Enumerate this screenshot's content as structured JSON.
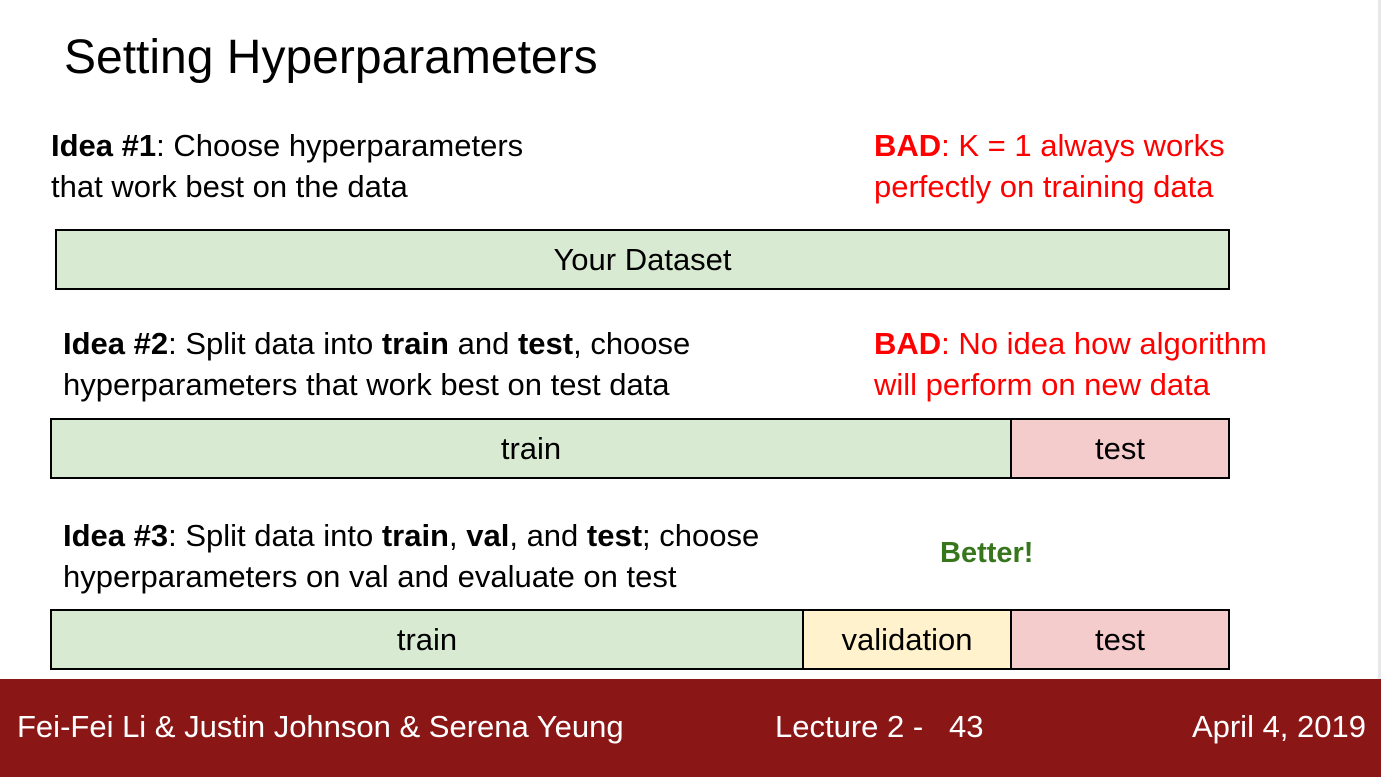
{
  "title": "Setting Hyperparameters",
  "idea1": {
    "label": "Idea #1",
    "line1": ": Choose hyperparameters",
    "line2": "that work best on the data",
    "verdict_label": "BAD",
    "verdict_line1": ": K = 1 always works",
    "verdict_line2": "perfectly on training data",
    "bar": "Your Dataset"
  },
  "idea2": {
    "label": "Idea #2",
    "t1": ": Split data into ",
    "train": "train",
    "t2": " and ",
    "test": "test",
    "t3": ", choose",
    "line2": "hyperparameters that work best on test data",
    "verdict_label": "BAD",
    "verdict_line1": ": No idea how algorithm",
    "verdict_line2": "will perform on new data",
    "bar_train": "train",
    "bar_test": "test"
  },
  "idea3": {
    "label": "Idea #3",
    "t1": ": Split data into ",
    "train": "train",
    "t2": ", ",
    "val": "val",
    "t3": ", and ",
    "test": "test",
    "t4": "; choose",
    "line2": "hyperparameters on val and evaluate on test",
    "verdict": "Better!",
    "bar_train": "train",
    "bar_val": "validation",
    "bar_test": "test"
  },
  "footer": {
    "authors": "Fei-Fei Li & Justin Johnson & Serena Yeung",
    "lecture": "Lecture 2 -   43",
    "date": "April 4, 2019"
  },
  "colors": {
    "footer_bg": "#8b1616",
    "bad": "#ff0000",
    "better": "#38761d",
    "train": "#d9ead3",
    "validation": "#fff2cc",
    "test": "#f4cccc"
  }
}
